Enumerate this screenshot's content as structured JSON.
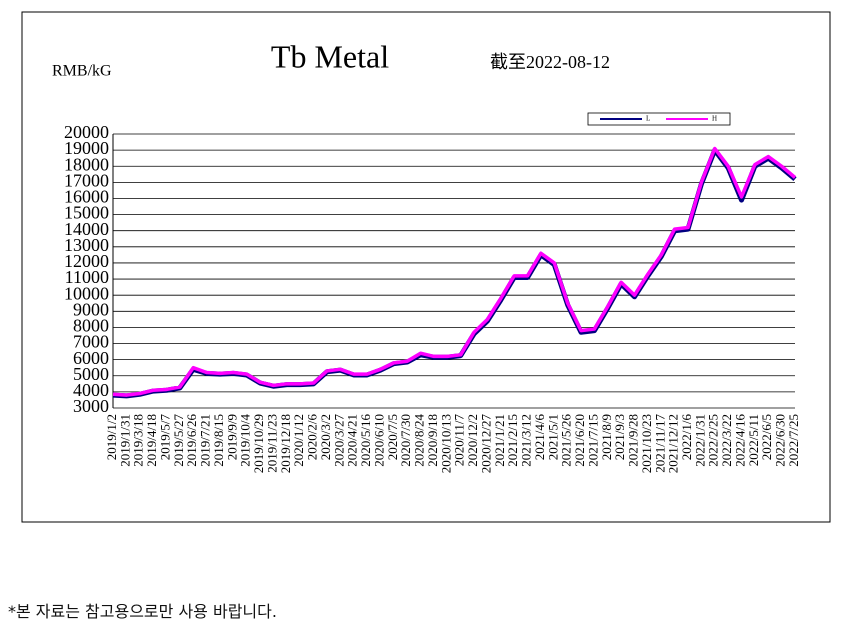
{
  "chart_data": {
    "type": "line",
    "title": "Tb Metal",
    "y_label": "RMB/kG",
    "annotation": "截至2022-08-12",
    "categories": [
      "2019/1/2",
      "2019/1/31",
      "2019/3/18",
      "2019/4/18",
      "2019/5/7",
      "2019/5/27",
      "2019/6/26",
      "2019/7/21",
      "2019/8/15",
      "2019/9/9",
      "2019/10/4",
      "2019/10/29",
      "2019/11/23",
      "2019/12/18",
      "2020/1/12",
      "2020/2/6",
      "2020/3/2",
      "2020/3/27",
      "2020/4/21",
      "2020/5/16",
      "2020/6/10",
      "2020/7/5",
      "2020/7/30",
      "2020/8/24",
      "2020/9/18",
      "2020/10/13",
      "2020/11/7",
      "2020/12/2",
      "2020/12/27",
      "2021/1/21",
      "2021/2/15",
      "2021/3/12",
      "2021/4/6",
      "2021/5/1",
      "2021/5/26",
      "2021/6/20",
      "2021/7/15",
      "2021/8/9",
      "2021/9/3",
      "2021/9/28",
      "2021/10/23",
      "2021/11/17",
      "2021/12/12",
      "2022/1/6",
      "2022/1/31",
      "2022/2/25",
      "2022/3/22",
      "2022/4/16",
      "2022/5/11",
      "2022/6/5",
      "2022/6/30",
      "2022/7/25"
    ],
    "series": [
      {
        "name": "L",
        "color": "#000080",
        "values": [
          3800,
          3750,
          3850,
          4050,
          4100,
          4250,
          5400,
          5150,
          5100,
          5150,
          5050,
          4550,
          4350,
          4450,
          4450,
          4500,
          5250,
          5350,
          5050,
          5050,
          5350,
          5750,
          5850,
          6300,
          6150,
          6150,
          6250,
          7600,
          8400,
          9700,
          11100,
          11100,
          12500,
          11900,
          9400,
          7700,
          7800,
          9200,
          10700,
          9900,
          11200,
          12400,
          14000,
          14100,
          16900,
          19000,
          17900,
          15900,
          18000,
          18500,
          17900,
          17200
        ]
      },
      {
        "name": "H",
        "color": "#ff00ff",
        "values": [
          3850,
          3800,
          3900,
          4100,
          4150,
          4300,
          5500,
          5200,
          5150,
          5200,
          5100,
          4600,
          4400,
          4500,
          4500,
          4550,
          5300,
          5400,
          5100,
          5100,
          5400,
          5800,
          5900,
          6400,
          6200,
          6200,
          6300,
          7700,
          8500,
          9800,
          11200,
          11200,
          12600,
          12000,
          9500,
          7800,
          7900,
          9300,
          10800,
          10000,
          11300,
          12500,
          14100,
          14200,
          17000,
          19100,
          18000,
          16100,
          18100,
          18600,
          18000,
          17300
        ]
      }
    ],
    "ylim": [
      3000,
      20000
    ],
    "yticks": [
      3000,
      4000,
      5000,
      6000,
      7000,
      8000,
      9000,
      10000,
      11000,
      12000,
      13000,
      14000,
      15000,
      16000,
      17000,
      18000,
      19000,
      20000
    ],
    "grid": true,
    "legend": "top-right"
  },
  "footnote": "*본 자료는 참고용으로만 사용 바랍니다."
}
